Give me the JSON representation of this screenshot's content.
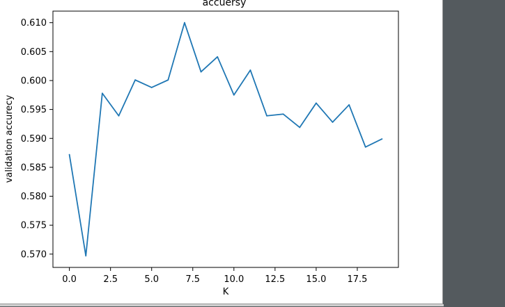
{
  "chart_data": {
    "type": "line",
    "title": "accuersy",
    "xlabel": "K",
    "ylabel": "validation accurecy",
    "xlim": [
      -1,
      20
    ],
    "ylim": [
      0.5677,
      0.612
    ],
    "xticks": [
      "0.0",
      "2.5",
      "5.0",
      "7.5",
      "10.0",
      "12.5",
      "15.0",
      "17.5"
    ],
    "xtick_values": [
      0,
      2.5,
      5,
      7.5,
      10,
      12.5,
      15,
      17.5
    ],
    "yticks": [
      "0.570",
      "0.575",
      "0.580",
      "0.585",
      "0.590",
      "0.595",
      "0.600",
      "0.605",
      "0.610"
    ],
    "ytick_values": [
      0.57,
      0.575,
      0.58,
      0.585,
      0.59,
      0.595,
      0.6,
      0.605,
      0.61
    ],
    "grid": false,
    "line_color": "#1f77b4",
    "x": [
      0,
      1,
      2,
      3,
      4,
      5,
      6,
      7,
      8,
      9,
      10,
      11,
      12,
      13,
      14,
      15,
      16,
      17,
      18,
      19
    ],
    "values": [
      0.5872,
      0.5697,
      0.5978,
      0.5939,
      0.6001,
      0.5988,
      0.6001,
      0.61,
      0.6015,
      0.6041,
      0.5975,
      0.6018,
      0.5939,
      0.5942,
      0.5919,
      0.5961,
      0.5928,
      0.5958,
      0.5885,
      0.5899
    ]
  }
}
